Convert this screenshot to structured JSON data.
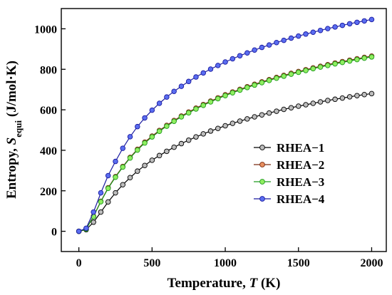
{
  "chart_data": {
    "type": "line",
    "xlabel": {
      "prefix": "Temperature, ",
      "symbol": "T",
      "suffix": " (K)"
    },
    "ylabel": {
      "prefix": "Entropy, ",
      "symbol": "S",
      "subscript": "equi",
      "suffix": " (J/mol·K)"
    },
    "xlim": [
      -120,
      2100
    ],
    "ylim": [
      -100,
      1100
    ],
    "xticks": [
      0,
      500,
      1000,
      1500,
      2000
    ],
    "yticks": [
      0,
      200,
      400,
      600,
      800,
      1000
    ],
    "xtick_labels": [
      "0",
      "500",
      "1000",
      "1500",
      "2000"
    ],
    "ytick_labels": [
      "0",
      "200",
      "400",
      "600",
      "800",
      "1000"
    ],
    "legend": {
      "position": "center-right"
    },
    "marker": "circle",
    "x": [
      0,
      50,
      100,
      150,
      200,
      250,
      300,
      350,
      400,
      450,
      500,
      550,
      600,
      650,
      700,
      750,
      800,
      850,
      900,
      950,
      1000,
      1050,
      1100,
      1150,
      1200,
      1250,
      1300,
      1350,
      1400,
      1450,
      1500,
      1550,
      1600,
      1650,
      1700,
      1750,
      1800,
      1850,
      1900,
      1950,
      2000
    ],
    "series": [
      {
        "name": "RHEA−1",
        "color": "#000000",
        "fill": "#bdbdbd",
        "values": [
          0,
          8,
          45,
          95,
          145,
          190,
          230,
          265,
          297,
          325,
          351,
          374,
          395,
          415,
          433,
          450,
          466,
          481,
          495,
          508,
          521,
          533,
          544,
          555,
          565,
          575,
          584,
          593,
          602,
          610,
          618,
          625,
          632,
          639,
          646,
          652,
          658,
          664,
          670,
          675,
          680
        ]
      },
      {
        "name": "RHEA−2",
        "color": "#7a2a10",
        "fill": "#e89060",
        "values": [
          0,
          12,
          75,
          148,
          215,
          270,
          320,
          365,
          405,
          440,
          470,
          498,
          523,
          547,
          569,
          589,
          608,
          626,
          643,
          659,
          674,
          688,
          701,
          714,
          726,
          738,
          749,
          760,
          770,
          780,
          789,
          798,
          807,
          815,
          823,
          831,
          838,
          845,
          852,
          859,
          865
        ]
      },
      {
        "name": "RHEA−3",
        "color": "#1e9a1e",
        "fill": "#90ee60",
        "values": [
          0,
          11,
          73,
          146,
          212,
          267,
          317,
          362,
          401,
          436,
          466,
          494,
          519,
          543,
          565,
          585,
          604,
          622,
          639,
          655,
          670,
          684,
          697,
          710,
          722,
          734,
          745,
          756,
          766,
          776,
          785,
          794,
          803,
          811,
          819,
          827,
          834,
          841,
          848,
          855,
          861
        ]
      },
      {
        "name": "RHEA−4",
        "color": "#1a1aa0",
        "fill": "#5a6df0",
        "values": [
          0,
          15,
          95,
          190,
          275,
          345,
          410,
          467,
          517,
          560,
          598,
          632,
          663,
          691,
          716,
          740,
          762,
          782,
          801,
          819,
          836,
          852,
          867,
          881,
          895,
          908,
          920,
          932,
          943,
          954,
          964,
          974,
          983,
          992,
          1001,
          1009,
          1017,
          1025,
          1032,
          1039,
          1046
        ]
      }
    ]
  }
}
